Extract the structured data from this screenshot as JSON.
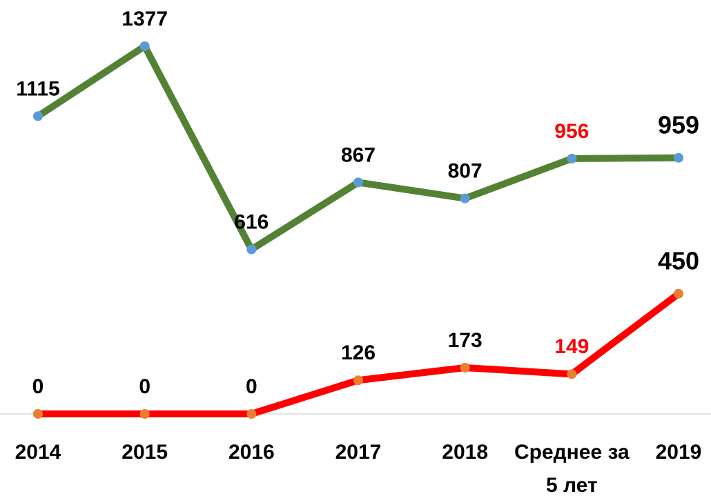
{
  "chart_data": {
    "type": "line",
    "categories": [
      "2014",
      "2015",
      "2016",
      "2017",
      "2018",
      "Среднее за 5 лет",
      "2019"
    ],
    "ylim": [
      0,
      1550
    ],
    "series": [
      {
        "color": "#548235",
        "marker_color": "#5b9bd5",
        "values": [
          1115,
          1377,
          616,
          867,
          807,
          956,
          959
        ],
        "label_colors": [
          "#000000",
          "#000000",
          "#000000",
          "#000000",
          "#000000",
          "#ff0000",
          "#000000"
        ]
      },
      {
        "color": "#ff0000",
        "marker_color": "#ed7d31",
        "values": [
          0,
          0,
          0,
          126,
          173,
          149,
          450
        ],
        "label_colors": [
          "#000000",
          "#000000",
          "#000000",
          "#000000",
          "#000000",
          "#ff0000",
          "#000000"
        ]
      }
    ]
  }
}
